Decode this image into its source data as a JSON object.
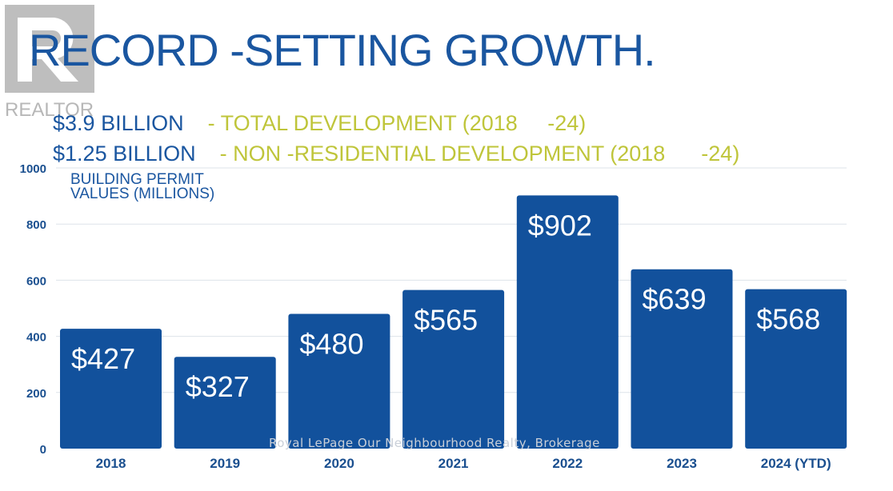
{
  "title": "RECORD -SETTING GROWTH.",
  "lines": [
    {
      "amount": "$3.9 BILLION",
      "desc": "- TOTAL DEVELOPMENT (2018     -24)"
    },
    {
      "amount": "$1.25 BILLION",
      "desc": "- NON -RESIDENTIAL DEVELOPMENT (2018      -24)"
    }
  ],
  "logo": {
    "text": "REALTOR",
    "icon": "realtor-r-logo"
  },
  "watermark": "Royal LePage Our Neighbourhood Realty, Brokerage",
  "colors": {
    "bar": "#12519c",
    "title": "#1a56a0",
    "accent": "#bfc53a",
    "grid": "#dde3ea"
  },
  "chart_data": {
    "type": "bar",
    "title": "BUILDING PERMIT VALUES (MILLIONS)",
    "title_lines": [
      "BUILDING PERMIT",
      "VALUES (MILLIONS)"
    ],
    "categories": [
      "2018",
      "2019",
      "2020",
      "2021",
      "2022",
      "2023",
      "2024 (YTD)"
    ],
    "values": [
      427,
      327,
      480,
      565,
      902,
      639,
      568
    ],
    "data_labels": [
      "$427",
      "$327",
      "$480",
      "$565",
      "$902",
      "$639",
      "$568"
    ],
    "ylim": [
      0,
      1000
    ],
    "yticks": [
      0,
      200,
      400,
      600,
      800,
      1000
    ],
    "grid": true
  }
}
